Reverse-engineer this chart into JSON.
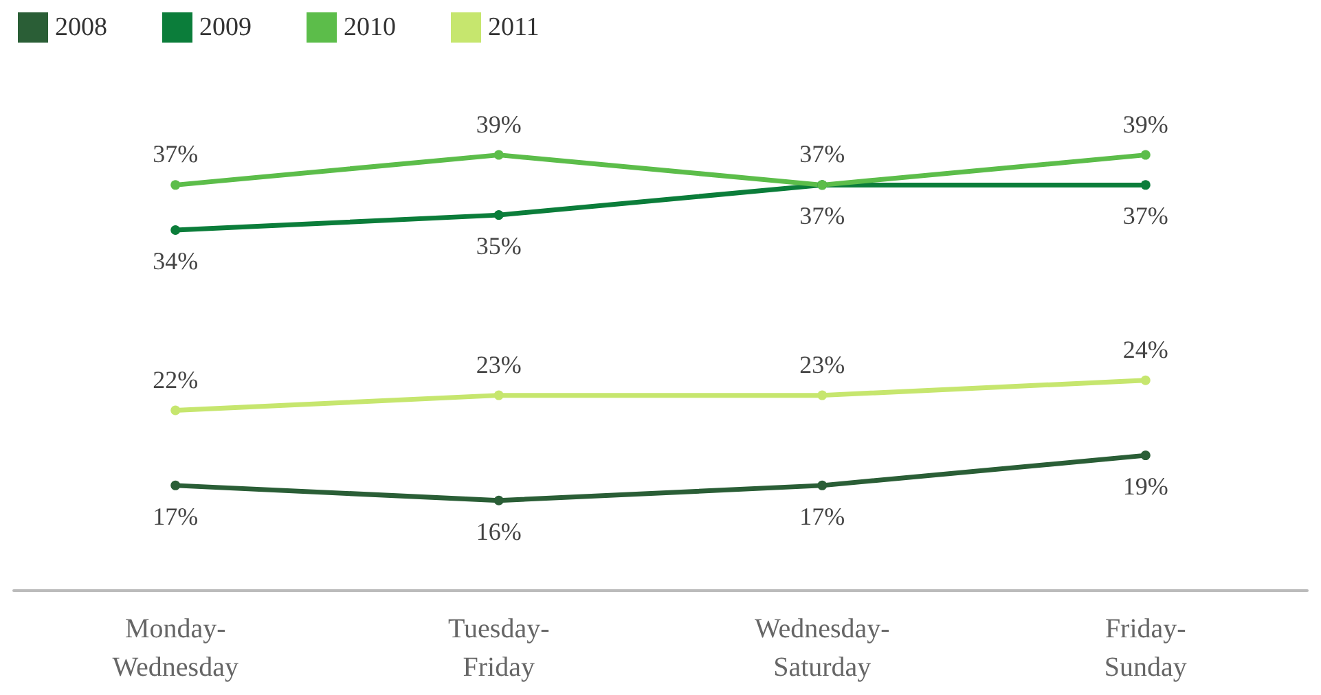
{
  "chart_data": {
    "type": "line",
    "categories": [
      "Monday-\nWednesday",
      "Tuesday-\nFriday",
      "Wednesday-\nSaturday",
      "Friday-\nSunday"
    ],
    "series": [
      {
        "name": "2008",
        "color": "#2a5e36",
        "values": [
          17,
          16,
          17,
          19
        ],
        "value_labels": [
          "17%",
          "16%",
          "17%",
          "19%"
        ]
      },
      {
        "name": "2009",
        "color": "#0b7d3a",
        "values": [
          34,
          35,
          37,
          37
        ],
        "value_labels": [
          "34%",
          "35%",
          "37%",
          "37%"
        ]
      },
      {
        "name": "2010",
        "color": "#5cbd4a",
        "values": [
          37,
          39,
          37,
          39
        ],
        "value_labels": [
          "37%",
          "39%",
          "37%",
          "39%"
        ]
      },
      {
        "name": "2011",
        "color": "#c6e66e",
        "values": [
          22,
          23,
          23,
          24
        ],
        "value_labels": [
          "22%",
          "23%",
          "23%",
          "24%"
        ]
      }
    ],
    "legend": "top left",
    "marker": "circle",
    "line_style": "solid",
    "grid": false
  }
}
